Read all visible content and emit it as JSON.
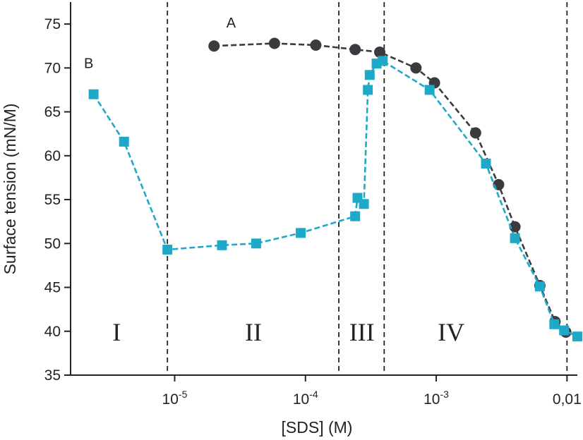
{
  "chart_data": {
    "type": "scatter",
    "title": "",
    "xlabel": "[SDS] (M)",
    "ylabel": "Surface tension (mN/M)",
    "x_scale": "log",
    "xlim": [
      1.6e-06,
      0.012
    ],
    "ylim": [
      35,
      77.5
    ],
    "grid": false,
    "legend": "none",
    "y_ticks": [
      35,
      40,
      45,
      50,
      55,
      60,
      65,
      70,
      75
    ],
    "x_ticks": [
      {
        "value": 1e-05,
        "base": "10",
        "exp": "-5",
        "plain": ""
      },
      {
        "value": 0.0001,
        "base": "10",
        "exp": "-4",
        "plain": ""
      },
      {
        "value": 0.001,
        "base": "10",
        "exp": "-3",
        "plain": ""
      },
      {
        "value": 0.01,
        "base": "",
        "exp": "",
        "plain": "0,01"
      }
    ],
    "region_boundaries": [
      8.8e-06,
      0.00018,
      0.0004,
      0.01
    ],
    "regions": [
      {
        "label": "I",
        "x": 3.6e-06,
        "y": 40
      },
      {
        "label": "II",
        "x": 4e-05,
        "y": 40
      },
      {
        "label": "III",
        "x": 0.00027,
        "y": 40
      },
      {
        "label": "IV",
        "x": 0.0013,
        "y": 40
      }
    ],
    "series": [
      {
        "name": "A",
        "label_at": {
          "x": 2.7e-05,
          "y": 74.6
        },
        "color": "#3a3a3f",
        "marker": "circle",
        "points": [
          [
            2e-05,
            72.5
          ],
          [
            5.8e-05,
            72.8
          ],
          [
            0.00012,
            72.6
          ],
          [
            0.00024,
            72.1
          ],
          [
            0.00037,
            71.8
          ],
          [
            0.0007,
            70.0
          ],
          [
            0.00097,
            68.3
          ],
          [
            0.002,
            62.6
          ],
          [
            0.003,
            56.7
          ],
          [
            0.004,
            51.9
          ],
          [
            0.0062,
            45.2
          ],
          [
            0.0081,
            41.1
          ],
          [
            0.0098,
            39.9
          ]
        ]
      },
      {
        "name": "B",
        "label_at": {
          "x": 2.2e-06,
          "y": 70
        },
        "color": "#1fa9c9",
        "marker": "square",
        "points": [
          [
            2.4e-06,
            67.0
          ],
          [
            4.1e-06,
            61.6
          ],
          [
            8.8e-06,
            49.3
          ],
          [
            2.3e-05,
            49.8
          ],
          [
            4.2e-05,
            50.0
          ],
          [
            9.2e-05,
            51.2
          ],
          [
            0.00024,
            53.1
          ],
          [
            0.00025,
            55.2
          ],
          [
            0.00028,
            54.5
          ],
          [
            0.0003,
            67.5
          ],
          [
            0.00031,
            69.2
          ],
          [
            0.00035,
            70.5
          ],
          [
            0.00039,
            70.8
          ],
          [
            0.00089,
            67.5
          ],
          [
            0.0024,
            59.1
          ],
          [
            0.004,
            50.6
          ],
          [
            0.0062,
            45.1
          ],
          [
            0.008,
            40.8
          ],
          [
            0.0095,
            40.1
          ],
          [
            0.012,
            39.4
          ]
        ]
      }
    ]
  }
}
